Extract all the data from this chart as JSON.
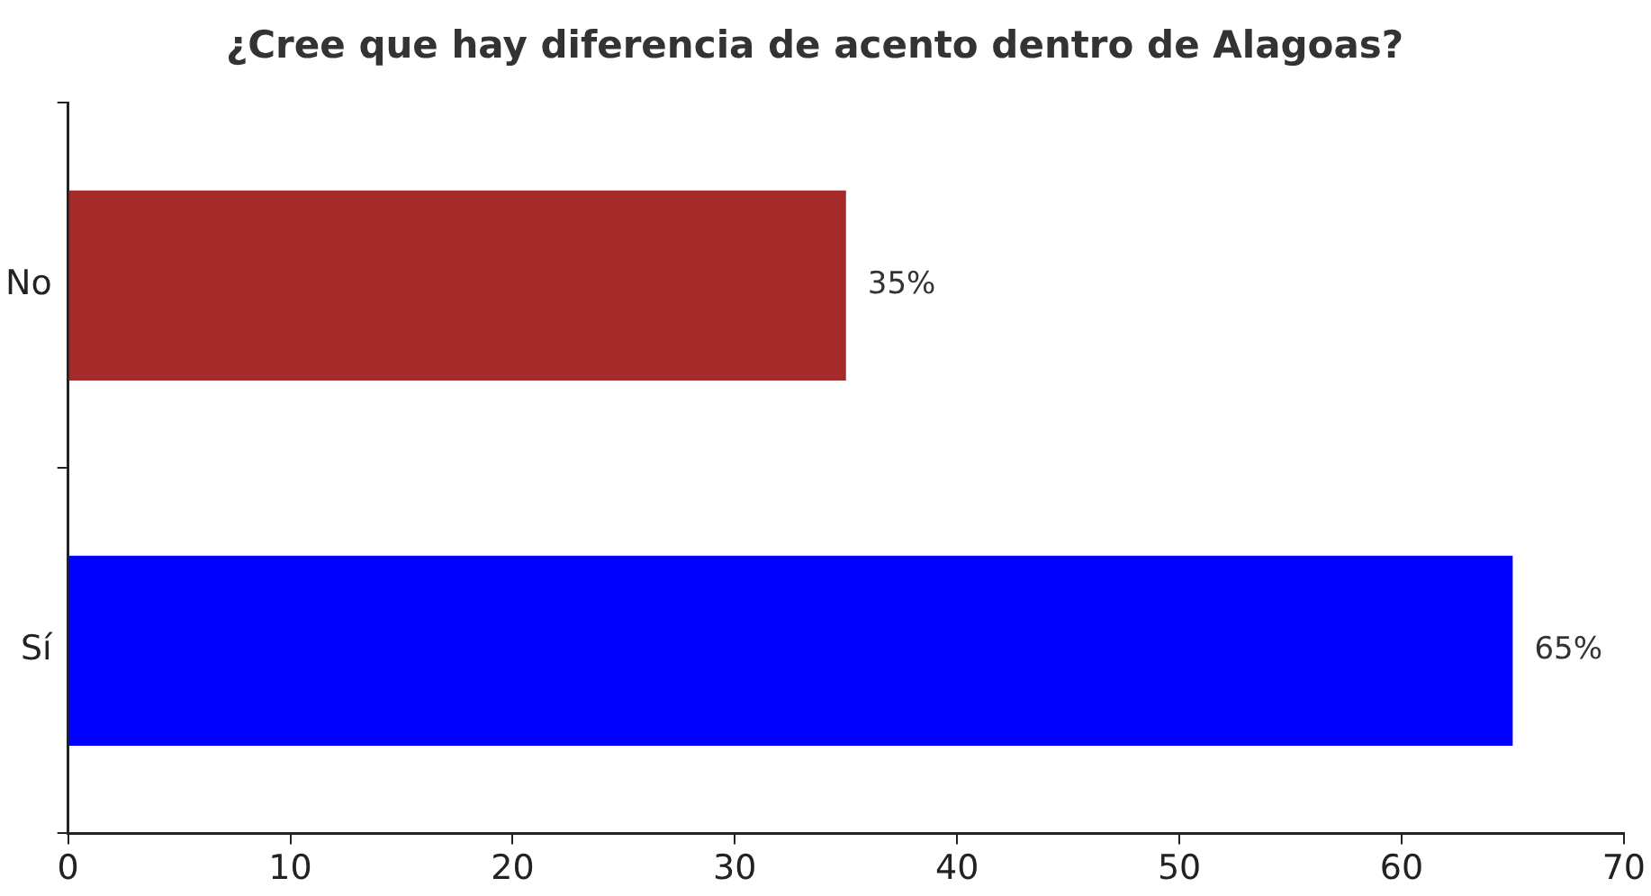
{
  "chart_data": {
    "type": "bar",
    "orientation": "horizontal",
    "title": "¿Cree que hay diferencia de acento dentro de Alagoas?",
    "categories": [
      "No",
      "Sí"
    ],
    "values": [
      35,
      65
    ],
    "colors": [
      "#a52a2a",
      "#0000ff"
    ],
    "value_labels": [
      "35%",
      "65%"
    ],
    "xlim": [
      0,
      70
    ],
    "xticks": [
      0,
      10,
      20,
      30,
      40,
      50,
      60,
      70
    ]
  }
}
